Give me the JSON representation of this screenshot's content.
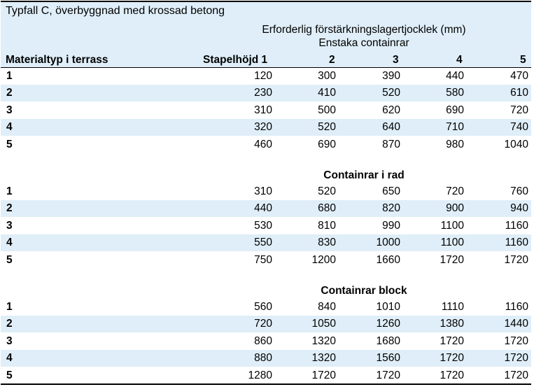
{
  "table": {
    "title": "Typfall C, överbyggnad med krossad betong",
    "caption_line1": "Erforderlig förstärkningslagertjocklek (mm)",
    "caption_line2": "Enstaka containrar",
    "headers": [
      "Materialtyp i terrass",
      "Stapelhöjd 1",
      "2",
      "3",
      "4",
      "5"
    ],
    "sections": [
      {
        "label": "",
        "rows": [
          {
            "type": "1",
            "values": [
              "120",
              "300",
              "390",
              "440",
              "470"
            ]
          },
          {
            "type": "2",
            "values": [
              "230",
              "410",
              "520",
              "580",
              "610"
            ]
          },
          {
            "type": "3",
            "values": [
              "310",
              "500",
              "620",
              "690",
              "720"
            ]
          },
          {
            "type": "4",
            "values": [
              "320",
              "520",
              "640",
              "710",
              "740"
            ]
          },
          {
            "type": "5",
            "values": [
              "460",
              "690",
              "870",
              "980",
              "1040"
            ]
          }
        ]
      },
      {
        "label": "Containrar i rad",
        "rows": [
          {
            "type": "1",
            "values": [
              "310",
              "520",
              "650",
              "720",
              "760"
            ]
          },
          {
            "type": "2",
            "values": [
              "440",
              "680",
              "820",
              "900",
              "940"
            ]
          },
          {
            "type": "3",
            "values": [
              "530",
              "810",
              "990",
              "1100",
              "1160"
            ]
          },
          {
            "type": "4",
            "values": [
              "550",
              "830",
              "1000",
              "1100",
              "1160"
            ]
          },
          {
            "type": "5",
            "values": [
              "750",
              "1200",
              "1660",
              "1720",
              "1720"
            ]
          }
        ]
      },
      {
        "label": "Containrar block",
        "rows": [
          {
            "type": "1",
            "values": [
              "560",
              "840",
              "1010",
              "1110",
              "1160"
            ]
          },
          {
            "type": "2",
            "values": [
              "720",
              "1050",
              "1260",
              "1380",
              "1440"
            ]
          },
          {
            "type": "3",
            "values": [
              "860",
              "1320",
              "1680",
              "1720",
              "1720"
            ]
          },
          {
            "type": "4",
            "values": [
              "880",
              "1320",
              "1560",
              "1720",
              "1720"
            ]
          },
          {
            "type": "5",
            "values": [
              "1280",
              "1720",
              "1720",
              "1720",
              "1720"
            ]
          }
        ]
      }
    ]
  }
}
